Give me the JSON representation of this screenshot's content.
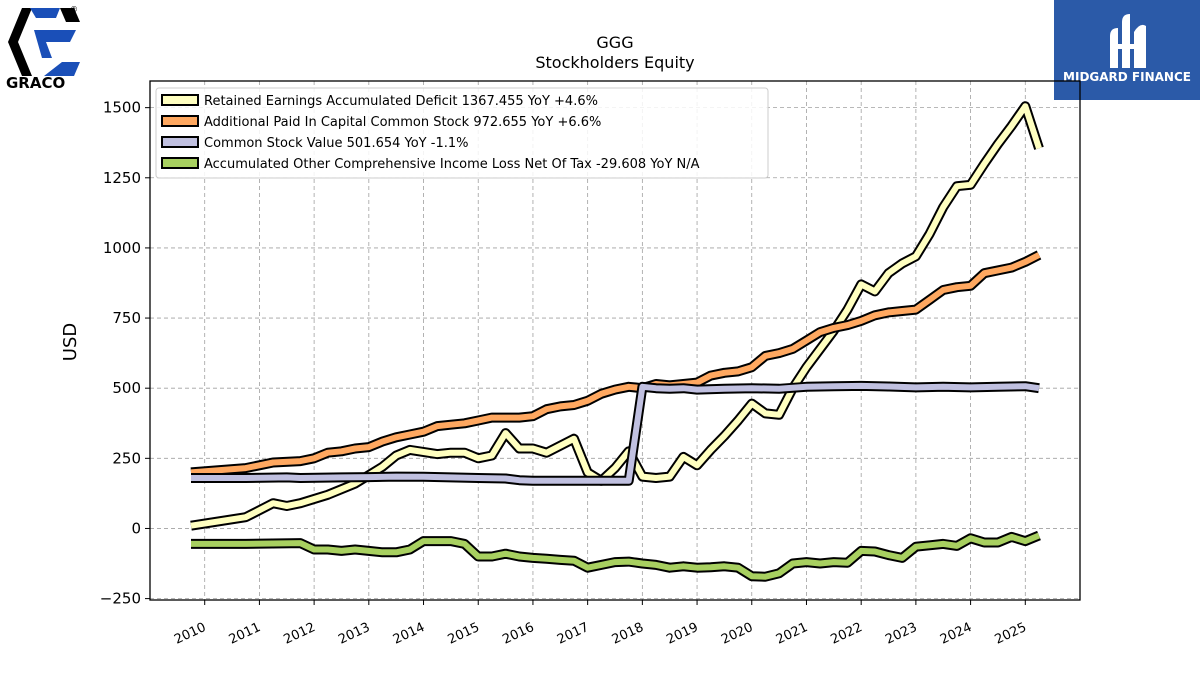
{
  "brand": {
    "left_logo_text": "GRACO",
    "left_logo_mark": "®",
    "right_logo_text": "MIDGARD FINANCE",
    "right_logo_bg": "#2b5aa8"
  },
  "chart_data": {
    "type": "line",
    "title": "GGG",
    "subtitle": "Stockholders  Equity",
    "ylabel": "USD",
    "xlabel": "",
    "ylim": [
      -255,
      1595
    ],
    "xlim": [
      2009.0,
      2026.0
    ],
    "yticks": [
      -250,
      0,
      250,
      500,
      750,
      1000,
      1250,
      1500
    ],
    "xticks": [
      "2010",
      "2011",
      "2012",
      "2013",
      "2014",
      "2015",
      "2016",
      "2017",
      "2018",
      "2019",
      "2020",
      "2021",
      "2022",
      "2023",
      "2024",
      "2025"
    ],
    "grid": true,
    "legend_position": "top-left",
    "series": [
      {
        "name": "Retained Earnings Accumulated Deficit",
        "legend_label": "Retained Earnings Accumulated Deficit  1367.455 YoY +4.6%",
        "color": "#ffffc0",
        "points": [
          [
            2009.75,
            10
          ],
          [
            2010.75,
            40
          ],
          [
            2011.25,
            90
          ],
          [
            2011.5,
            80
          ],
          [
            2011.75,
            90
          ],
          [
            2012.25,
            120
          ],
          [
            2012.75,
            160
          ],
          [
            2013.0,
            190
          ],
          [
            2013.25,
            220
          ],
          [
            2013.5,
            260
          ],
          [
            2013.75,
            280
          ],
          [
            2014.25,
            265
          ],
          [
            2014.5,
            270
          ],
          [
            2014.75,
            270
          ],
          [
            2015.0,
            250
          ],
          [
            2015.25,
            260
          ],
          [
            2015.5,
            340
          ],
          [
            2015.75,
            285
          ],
          [
            2016.0,
            285
          ],
          [
            2016.25,
            270
          ],
          [
            2016.5,
            295
          ],
          [
            2016.75,
            320
          ],
          [
            2017.0,
            200
          ],
          [
            2017.25,
            170
          ],
          [
            2017.5,
            215
          ],
          [
            2017.75,
            275
          ],
          [
            2018.0,
            185
          ],
          [
            2018.25,
            180
          ],
          [
            2018.5,
            185
          ],
          [
            2018.75,
            255
          ],
          [
            2019.0,
            225
          ],
          [
            2019.25,
            280
          ],
          [
            2019.5,
            330
          ],
          [
            2019.75,
            385
          ],
          [
            2020.0,
            445
          ],
          [
            2020.25,
            410
          ],
          [
            2020.5,
            405
          ],
          [
            2020.75,
            500
          ],
          [
            2021.0,
            575
          ],
          [
            2021.5,
            705
          ],
          [
            2021.75,
            780
          ],
          [
            2022.0,
            870
          ],
          [
            2022.25,
            845
          ],
          [
            2022.5,
            910
          ],
          [
            2022.75,
            945
          ],
          [
            2023.0,
            970
          ],
          [
            2023.25,
            1050
          ],
          [
            2023.5,
            1145
          ],
          [
            2023.75,
            1220
          ],
          [
            2024.0,
            1225
          ],
          [
            2024.25,
            1300
          ],
          [
            2024.5,
            1370
          ],
          [
            2024.75,
            1435
          ],
          [
            2025.0,
            1505
          ],
          [
            2025.25,
            1355
          ]
        ]
      },
      {
        "name": "Additional Paid In Capital Common Stock",
        "legend_label": "Additional Paid In Capital Common Stock  972.655 YoY +6.6%",
        "color": "#ffa860",
        "points": [
          [
            2009.75,
            200
          ],
          [
            2010.75,
            215
          ],
          [
            2011.0,
            225
          ],
          [
            2011.25,
            235
          ],
          [
            2011.75,
            240
          ],
          [
            2012.0,
            250
          ],
          [
            2012.25,
            270
          ],
          [
            2012.5,
            275
          ],
          [
            2012.75,
            285
          ],
          [
            2013.0,
            290
          ],
          [
            2013.25,
            310
          ],
          [
            2013.5,
            325
          ],
          [
            2013.75,
            335
          ],
          [
            2014.0,
            345
          ],
          [
            2014.25,
            365
          ],
          [
            2014.5,
            370
          ],
          [
            2014.75,
            375
          ],
          [
            2015.0,
            385
          ],
          [
            2015.25,
            395
          ],
          [
            2015.5,
            395
          ],
          [
            2015.75,
            395
          ],
          [
            2016.0,
            400
          ],
          [
            2016.25,
            425
          ],
          [
            2016.5,
            435
          ],
          [
            2016.75,
            440
          ],
          [
            2017.0,
            455
          ],
          [
            2017.25,
            480
          ],
          [
            2017.5,
            495
          ],
          [
            2017.75,
            505
          ],
          [
            2018.0,
            500
          ],
          [
            2018.25,
            515
          ],
          [
            2018.5,
            510
          ],
          [
            2018.75,
            515
          ],
          [
            2019.0,
            520
          ],
          [
            2019.25,
            545
          ],
          [
            2019.5,
            555
          ],
          [
            2019.75,
            560
          ],
          [
            2020.0,
            575
          ],
          [
            2020.25,
            615
          ],
          [
            2020.5,
            625
          ],
          [
            2020.75,
            640
          ],
          [
            2021.0,
            670
          ],
          [
            2021.25,
            700
          ],
          [
            2021.5,
            715
          ],
          [
            2021.75,
            725
          ],
          [
            2022.0,
            740
          ],
          [
            2022.25,
            760
          ],
          [
            2022.5,
            770
          ],
          [
            2022.75,
            775
          ],
          [
            2023.0,
            780
          ],
          [
            2023.25,
            815
          ],
          [
            2023.5,
            850
          ],
          [
            2023.75,
            860
          ],
          [
            2024.0,
            865
          ],
          [
            2024.25,
            910
          ],
          [
            2024.5,
            920
          ],
          [
            2024.75,
            930
          ],
          [
            2025.0,
            950
          ],
          [
            2025.25,
            975
          ]
        ]
      },
      {
        "name": "Common Stock Value",
        "legend_label": "Common Stock Value  501.654 YoY -1.1%",
        "color": "#c0c0e0",
        "points": [
          [
            2009.75,
            180
          ],
          [
            2010.75,
            180
          ],
          [
            2011.5,
            182
          ],
          [
            2011.75,
            180
          ],
          [
            2012.5,
            182
          ],
          [
            2013.0,
            183
          ],
          [
            2013.5,
            185
          ],
          [
            2014.0,
            184
          ],
          [
            2014.5,
            182
          ],
          [
            2015.0,
            180
          ],
          [
            2015.5,
            178
          ],
          [
            2015.75,
            172
          ],
          [
            2016.0,
            170
          ],
          [
            2016.5,
            170
          ],
          [
            2017.0,
            170
          ],
          [
            2017.5,
            170
          ],
          [
            2017.75,
            170
          ],
          [
            2018.0,
            505
          ],
          [
            2018.25,
            500
          ],
          [
            2018.5,
            498
          ],
          [
            2018.75,
            500
          ],
          [
            2019.0,
            495
          ],
          [
            2019.5,
            498
          ],
          [
            2020.0,
            500
          ],
          [
            2020.5,
            498
          ],
          [
            2021.0,
            505
          ],
          [
            2021.5,
            507
          ],
          [
            2022.0,
            508
          ],
          [
            2022.5,
            506
          ],
          [
            2023.0,
            503
          ],
          [
            2023.5,
            505
          ],
          [
            2024.0,
            503
          ],
          [
            2024.5,
            505
          ],
          [
            2025.0,
            507
          ],
          [
            2025.25,
            500
          ]
        ]
      },
      {
        "name": "Accumulated Other Comprehensive Income Loss Net Of Tax",
        "legend_label": "Accumulated Other Comprehensive Income Loss Net Of Tax  -29.608 YoY N/A",
        "color": "#a8d060",
        "points": [
          [
            2009.75,
            -55
          ],
          [
            2010.75,
            -55
          ],
          [
            2011.75,
            -52
          ],
          [
            2012.0,
            -75
          ],
          [
            2012.25,
            -75
          ],
          [
            2012.5,
            -80
          ],
          [
            2012.75,
            -75
          ],
          [
            2013.0,
            -80
          ],
          [
            2013.25,
            -85
          ],
          [
            2013.5,
            -85
          ],
          [
            2013.75,
            -75
          ],
          [
            2014.0,
            -45
          ],
          [
            2014.25,
            -45
          ],
          [
            2014.5,
            -45
          ],
          [
            2014.75,
            -55
          ],
          [
            2015.0,
            -100
          ],
          [
            2015.25,
            -100
          ],
          [
            2015.5,
            -90
          ],
          [
            2015.75,
            -100
          ],
          [
            2016.0,
            -105
          ],
          [
            2016.25,
            -108
          ],
          [
            2016.5,
            -112
          ],
          [
            2016.75,
            -115
          ],
          [
            2017.0,
            -140
          ],
          [
            2017.25,
            -130
          ],
          [
            2017.5,
            -120
          ],
          [
            2017.75,
            -118
          ],
          [
            2018.0,
            -125
          ],
          [
            2018.25,
            -130
          ],
          [
            2018.5,
            -140
          ],
          [
            2018.75,
            -135
          ],
          [
            2019.0,
            -140
          ],
          [
            2019.25,
            -138
          ],
          [
            2019.5,
            -135
          ],
          [
            2019.75,
            -140
          ],
          [
            2020.0,
            -170
          ],
          [
            2020.25,
            -172
          ],
          [
            2020.5,
            -160
          ],
          [
            2020.75,
            -125
          ],
          [
            2021.0,
            -120
          ],
          [
            2021.25,
            -125
          ],
          [
            2021.5,
            -120
          ],
          [
            2021.75,
            -122
          ],
          [
            2022.0,
            -80
          ],
          [
            2022.25,
            -82
          ],
          [
            2022.5,
            -95
          ],
          [
            2022.75,
            -105
          ],
          [
            2023.0,
            -65
          ],
          [
            2023.25,
            -60
          ],
          [
            2023.5,
            -55
          ],
          [
            2023.75,
            -62
          ],
          [
            2024.0,
            -35
          ],
          [
            2024.25,
            -50
          ],
          [
            2024.5,
            -50
          ],
          [
            2024.75,
            -30
          ],
          [
            2025.0,
            -45
          ],
          [
            2025.25,
            -25
          ]
        ]
      }
    ]
  }
}
